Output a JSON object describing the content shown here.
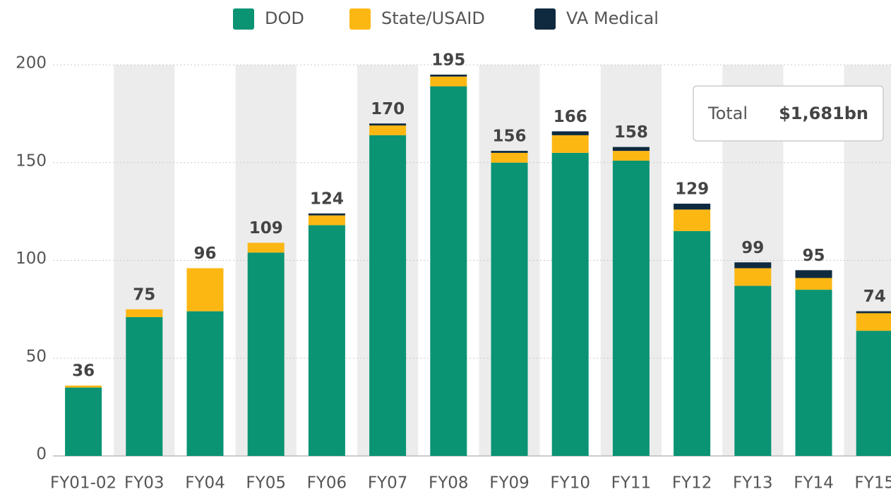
{
  "chart_data": {
    "type": "stacked_bar",
    "categories": [
      "FY01-02",
      "FY03",
      "FY04",
      "FY05",
      "FY06",
      "FY07",
      "FY08",
      "FY09",
      "FY10",
      "FY11",
      "FY12",
      "FY13",
      "FY14",
      "FY15"
    ],
    "series": [
      {
        "name": "DOD",
        "color": "#0a9474",
        "values": [
          35,
          71,
          74,
          104,
          118,
          164,
          189,
          150,
          155,
          151,
          115,
          87,
          85,
          64
        ]
      },
      {
        "name": "State/USAID",
        "color": "#fdb713",
        "values": [
          1,
          4,
          22,
          5,
          5,
          5,
          5,
          5,
          9,
          5,
          11,
          9,
          6,
          9
        ]
      },
      {
        "name": "VA Medical",
        "color": "#0f2a3f",
        "values": [
          0,
          0,
          0,
          0,
          1,
          1,
          1,
          1,
          2,
          2,
          3,
          3,
          4,
          1
        ]
      }
    ],
    "totals": [
      36,
      75,
      96,
      109,
      124,
      170,
      195,
      156,
      166,
      158,
      129,
      99,
      95,
      74
    ],
    "ylim": [
      0,
      200
    ],
    "yticks": [
      0,
      50,
      100,
      150,
      200
    ],
    "grid": true,
    "legend": "top",
    "annotation": {
      "label": "Total",
      "value": "$1,681bn"
    }
  }
}
